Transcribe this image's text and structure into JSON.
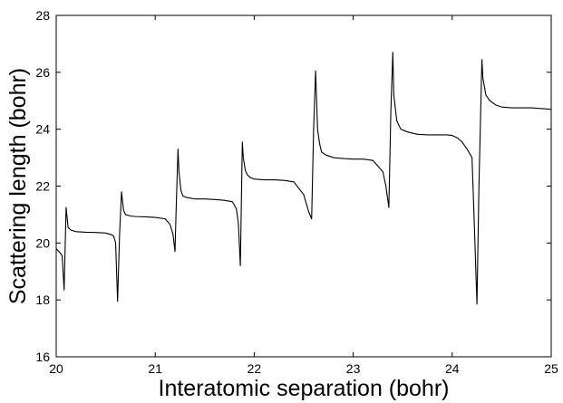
{
  "chart_data": {
    "type": "line",
    "title": "",
    "xlabel": "Interatomic separation (bohr)",
    "ylabel": "Scattering length (bohr)",
    "xlim": [
      20,
      25
    ],
    "ylim": [
      16,
      28
    ],
    "xticks": [
      20,
      21,
      22,
      23,
      24,
      25
    ],
    "yticks": [
      16,
      18,
      20,
      22,
      24,
      26,
      28
    ],
    "grid": false,
    "legend": "none",
    "line_color": "#000000",
    "series": [
      {
        "x": [
          20.0,
          20.04,
          20.06,
          20.08,
          20.1,
          20.12,
          20.15,
          20.2,
          20.3,
          20.4,
          20.5,
          20.55,
          20.58,
          20.6,
          20.62,
          20.64,
          20.66,
          20.68,
          20.7,
          20.75,
          20.8,
          20.9,
          21.0,
          21.1,
          21.15,
          21.18,
          21.2,
          21.21,
          21.23,
          21.24,
          21.26,
          21.28,
          21.32,
          21.4,
          21.5,
          21.6,
          21.7,
          21.78,
          21.82,
          21.84,
          21.86,
          21.88,
          21.89,
          21.91,
          21.93,
          21.96,
          22.0,
          22.1,
          22.2,
          22.3,
          22.4,
          22.5,
          22.55,
          22.58,
          22.6,
          22.62,
          22.64,
          22.66,
          22.68,
          22.72,
          22.8,
          22.9,
          23.0,
          23.1,
          23.2,
          23.3,
          23.33,
          23.36,
          23.38,
          23.4,
          23.41,
          23.44,
          23.48,
          23.55,
          23.65,
          23.75,
          23.85,
          23.95,
          24.0,
          24.05,
          24.1,
          24.15,
          24.2,
          24.22,
          24.25,
          24.27,
          24.3,
          24.31,
          24.34,
          24.38,
          24.44,
          24.5,
          24.6,
          24.8,
          25.0
        ],
        "y": [
          19.8,
          19.65,
          19.55,
          18.35,
          21.25,
          20.55,
          20.45,
          20.4,
          20.38,
          20.37,
          20.35,
          20.3,
          20.25,
          20.0,
          17.95,
          20.3,
          21.8,
          21.15,
          21.0,
          20.95,
          20.93,
          20.92,
          20.9,
          20.85,
          20.65,
          20.3,
          19.7,
          21.0,
          23.3,
          22.5,
          21.85,
          21.65,
          21.6,
          21.55,
          21.55,
          21.53,
          21.5,
          21.45,
          21.2,
          20.7,
          19.2,
          23.55,
          23.0,
          22.55,
          22.4,
          22.3,
          22.25,
          22.22,
          22.22,
          22.2,
          22.15,
          21.7,
          21.1,
          20.85,
          24.0,
          26.05,
          24.0,
          23.5,
          23.2,
          23.1,
          23.0,
          22.97,
          22.95,
          22.95,
          22.9,
          22.5,
          22.0,
          21.25,
          24.6,
          26.7,
          25.2,
          24.3,
          24.0,
          23.9,
          23.82,
          23.8,
          23.8,
          23.8,
          23.78,
          23.7,
          23.55,
          23.3,
          23.0,
          21.0,
          17.85,
          22.0,
          26.45,
          25.8,
          25.2,
          25.0,
          24.85,
          24.78,
          24.75,
          24.75,
          24.7
        ]
      }
    ]
  }
}
